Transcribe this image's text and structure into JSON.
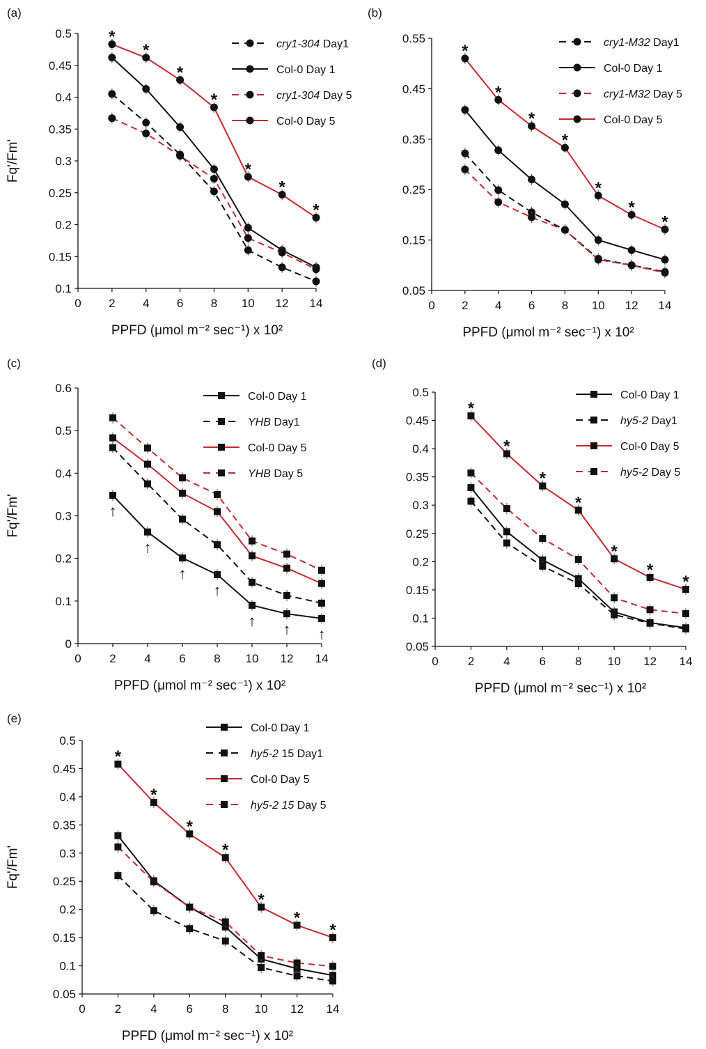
{
  "chart_data": [
    {
      "type": "line",
      "panel_label": "(a)",
      "xlabel": "PPFD (μmol m⁻² sec⁻¹) x 10²",
      "ylabel": "Fq'/Fm'",
      "xlim": [
        0,
        14
      ],
      "xticks": [
        "0",
        "2",
        "4",
        "6",
        "8",
        "10",
        "12",
        "14"
      ],
      "ylim": [
        0.1,
        0.5
      ],
      "yticks": [
        "0.1",
        "0.15",
        "0.2",
        "0.25",
        "0.3",
        "0.35",
        "0.4",
        "0.45",
        "0.5"
      ],
      "grid": false,
      "legend_position": "top-right",
      "x": [
        2,
        4,
        6,
        8,
        10,
        12,
        14
      ],
      "series": [
        {
          "name": "cry1-304 Day1",
          "name_italic": "cry1-304",
          "name_rest": " Day1",
          "values": [
            0.405,
            0.36,
            0.31,
            0.252,
            0.16,
            0.133,
            0.111
          ],
          "color": "#111111",
          "dash": true,
          "marker": "circle"
        },
        {
          "name": "Col-0 Day 1",
          "name_italic": "",
          "name_rest": "Col-0 Day 1",
          "values": [
            0.462,
            0.413,
            0.353,
            0.287,
            0.195,
            0.16,
            0.133
          ],
          "color": "#111111",
          "dash": false,
          "marker": "circle"
        },
        {
          "name": "cry1-304 Day 5",
          "name_italic": "cry1-304",
          "name_rest": " Day 5",
          "values": [
            0.367,
            0.343,
            0.308,
            0.272,
            0.179,
            0.156,
            0.13
          ],
          "color": "#c8282e",
          "dash": true,
          "marker": "circle"
        },
        {
          "name": "Col-0 Day 5",
          "name_italic": "",
          "name_rest": "Col-0 Day 5",
          "values": [
            0.483,
            0.462,
            0.427,
            0.384,
            0.275,
            0.247,
            0.211
          ],
          "color": "#c8282e",
          "dash": false,
          "marker": "circle"
        }
      ],
      "annotations": {
        "symbol": "*",
        "series_index": 3,
        "x": [
          2,
          4,
          6,
          8,
          10,
          12,
          14
        ]
      }
    },
    {
      "type": "line",
      "panel_label": "(b)",
      "xlabel": "PPFD (μmol m⁻² sec⁻¹) x 10²",
      "ylabel": "",
      "xlim": [
        0,
        14
      ],
      "xticks": [
        "0",
        "2",
        "4",
        "6",
        "8",
        "10",
        "12",
        "14"
      ],
      "ylim": [
        0.05,
        0.55
      ],
      "yticks": [
        "0.05",
        "0.15",
        "0.25",
        "0.35",
        "0.45",
        "0.55"
      ],
      "grid": false,
      "legend_position": "top-right",
      "x": [
        2,
        4,
        6,
        8,
        10,
        12,
        14
      ],
      "series": [
        {
          "name": "cry1-M32 Day1",
          "name_italic": "cry1-M32",
          "name_rest": " Day1",
          "values": [
            0.322,
            0.249,
            0.205,
            0.17,
            0.113,
            0.1,
            0.087
          ],
          "color": "#111111",
          "dash": true,
          "marker": "circle"
        },
        {
          "name": "Col-0 Day 1",
          "name_italic": "",
          "name_rest": "Col-0 Day 1",
          "values": [
            0.408,
            0.328,
            0.27,
            0.221,
            0.15,
            0.13,
            0.111
          ],
          "color": "#111111",
          "dash": false,
          "marker": "circle"
        },
        {
          "name": "cry1-M32 Day 5",
          "name_italic": "cry1-M32",
          "name_rest": " Day 5",
          "values": [
            0.29,
            0.225,
            0.195,
            0.17,
            0.111,
            0.1,
            0.085
          ],
          "color": "#c8282e",
          "dash": true,
          "marker": "circle"
        },
        {
          "name": "Col-0 Day 5",
          "name_italic": "",
          "name_rest": "Col-0 Day 5",
          "values": [
            0.51,
            0.428,
            0.376,
            0.333,
            0.238,
            0.2,
            0.171
          ],
          "color": "#c8282e",
          "dash": false,
          "marker": "circle"
        }
      ],
      "annotations": {
        "symbol": "*",
        "series_index": 3,
        "x": [
          2,
          4,
          6,
          8,
          10,
          12,
          14
        ]
      }
    },
    {
      "type": "line",
      "panel_label": "(c)",
      "xlabel": "PPFD (μmol m⁻² sec⁻¹) x 10²",
      "ylabel": "Fq'/Fm'",
      "xlim": [
        0,
        14
      ],
      "xticks": [
        "0",
        "2",
        "4",
        "6",
        "8",
        "10",
        "12",
        "14"
      ],
      "ylim": [
        0,
        0.6
      ],
      "yticks": [
        "0",
        "0.1",
        "0.2",
        "0.3",
        "0.4",
        "0.5",
        "0.6"
      ],
      "grid": false,
      "legend_position": "top-right",
      "x": [
        2,
        4,
        6,
        8,
        10,
        12,
        14
      ],
      "series": [
        {
          "name": "Col-0 Day 1",
          "name_italic": "",
          "name_rest": "Col-0 Day 1",
          "values": [
            0.348,
            0.262,
            0.201,
            0.162,
            0.09,
            0.07,
            0.059
          ],
          "color": "#111111",
          "dash": false,
          "marker": "square"
        },
        {
          "name": "YHB Day1",
          "name_italic": "YHB",
          "name_rest": " Day1",
          "values": [
            0.46,
            0.375,
            0.292,
            0.232,
            0.144,
            0.113,
            0.095
          ],
          "color": "#111111",
          "dash": true,
          "marker": "square"
        },
        {
          "name": "Col-0 Day 5",
          "name_italic": "",
          "name_rest": "Col-0 Day 5",
          "values": [
            0.483,
            0.421,
            0.353,
            0.31,
            0.206,
            0.177,
            0.141
          ],
          "color": "#c8282e",
          "dash": false,
          "marker": "square"
        },
        {
          "name": "YHB Day 5",
          "name_italic": "YHB",
          "name_rest": " Day 5",
          "values": [
            0.53,
            0.459,
            0.389,
            0.35,
            0.241,
            0.21,
            0.172
          ],
          "color": "#c8282e",
          "dash": true,
          "marker": "square"
        }
      ],
      "annotations": {
        "symbol": "↑",
        "series_index": 0,
        "x": [
          2,
          4,
          6,
          8,
          10,
          12,
          14
        ]
      }
    },
    {
      "type": "line",
      "panel_label": "(d)",
      "xlabel": "PPFD (μmol m⁻² sec⁻¹) x 10²",
      "ylabel": "",
      "xlim": [
        0,
        14
      ],
      "xticks": [
        "0",
        "2",
        "4",
        "6",
        "8",
        "10",
        "12",
        "14"
      ],
      "ylim": [
        0.05,
        0.5
      ],
      "yticks": [
        "0.05",
        "0.1",
        "0.15",
        "0.2",
        "0.25",
        "0.3",
        "0.35",
        "0.4",
        "0.45",
        "0.5"
      ],
      "grid": false,
      "legend_position": "top-right",
      "x": [
        2,
        4,
        6,
        8,
        10,
        12,
        14
      ],
      "series": [
        {
          "name": "Col-0 Day 1",
          "name_italic": "",
          "name_rest": "Col-0 Day 1",
          "values": [
            0.331,
            0.253,
            0.203,
            0.17,
            0.111,
            0.092,
            0.083
          ],
          "color": "#111111",
          "dash": false,
          "marker": "square"
        },
        {
          "name": "hy5-2 Day1",
          "name_italic": "hy5-2",
          "name_rest": " Day1",
          "values": [
            0.307,
            0.233,
            0.192,
            0.161,
            0.106,
            0.091,
            0.081
          ],
          "color": "#111111",
          "dash": true,
          "marker": "square"
        },
        {
          "name": "Col-0 Day 5",
          "name_italic": "",
          "name_rest": "Col-0 Day 5",
          "values": [
            0.458,
            0.391,
            0.334,
            0.291,
            0.205,
            0.172,
            0.151
          ],
          "color": "#c8282e",
          "dash": false,
          "marker": "square"
        },
        {
          "name": "hy5-2 Day 5",
          "name_italic": "hy5-2",
          "name_rest": " Day 5",
          "values": [
            0.357,
            0.294,
            0.241,
            0.204,
            0.136,
            0.115,
            0.108
          ],
          "color": "#c8282e",
          "dash": true,
          "marker": "square"
        }
      ],
      "annotations": {
        "symbol": "*",
        "series_index": 2,
        "x": [
          2,
          4,
          6,
          8,
          10,
          12,
          14
        ]
      }
    },
    {
      "type": "line",
      "panel_label": "(e)",
      "xlabel": "PPFD (μmol m⁻² sec⁻¹) x 10²",
      "ylabel": "Fq'/Fm'",
      "xlim": [
        0,
        14
      ],
      "xticks": [
        "0",
        "2",
        "4",
        "6",
        "8",
        "10",
        "12",
        "14"
      ],
      "ylim": [
        0.05,
        0.5
      ],
      "yticks": [
        "0.05",
        "0.1",
        "0.15",
        "0.2",
        "0.25",
        "0.3",
        "0.35",
        "0.4",
        "0.45",
        "0.5"
      ],
      "grid": false,
      "legend_position": "top-right",
      "x": [
        2,
        4,
        6,
        8,
        10,
        12,
        14
      ],
      "series": [
        {
          "name": "Col-0 Day 1",
          "name_italic": "",
          "name_rest": "Col-0 Day 1",
          "values": [
            0.331,
            0.251,
            0.204,
            0.169,
            0.112,
            0.095,
            0.083
          ],
          "color": "#111111",
          "dash": false,
          "marker": "square"
        },
        {
          "name": "hy5-2 15 Day1",
          "name_italic": "hy5-2",
          "name_rest": " 15 Day1",
          "values": [
            0.26,
            0.198,
            0.166,
            0.144,
            0.097,
            0.082,
            0.073
          ],
          "color": "#111111",
          "dash": true,
          "marker": "square"
        },
        {
          "name": "Col-0 Day 5",
          "name_italic": "",
          "name_rest": "Col-0 Day 5",
          "values": [
            0.458,
            0.39,
            0.334,
            0.292,
            0.204,
            0.172,
            0.15
          ],
          "color": "#c8282e",
          "dash": false,
          "marker": "square"
        },
        {
          "name": "hy5-2 15 Day 5",
          "name_italic": "hy5-2 15",
          "name_rest": " Day 5",
          "values": [
            0.311,
            0.249,
            0.204,
            0.178,
            0.118,
            0.105,
            0.099
          ],
          "color": "#c8282e",
          "dash": true,
          "marker": "square"
        }
      ],
      "annotations": {
        "symbol": "*",
        "series_index": 2,
        "x": [
          2,
          4,
          6,
          8,
          10,
          12,
          14
        ]
      }
    }
  ]
}
